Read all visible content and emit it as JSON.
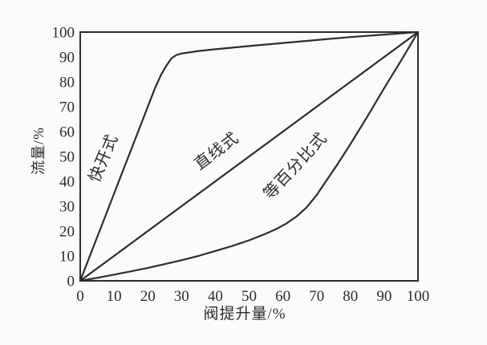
{
  "figure": {
    "background": "#fbfbfb",
    "line_color": "#2d2d2d",
    "text_color": "#2b2b2b"
  },
  "chart_data": {
    "type": "line",
    "title": "",
    "xlabel": "阀提升量/%",
    "ylabel": "流量/%",
    "xlim": [
      0,
      100
    ],
    "ylim": [
      0,
      100
    ],
    "x_ticks": [
      0,
      10,
      20,
      30,
      40,
      50,
      60,
      70,
      80,
      90,
      100
    ],
    "y_ticks": [
      0,
      10,
      20,
      30,
      40,
      50,
      60,
      70,
      80,
      90,
      100
    ],
    "grid": false,
    "frame": "full-box",
    "legend_position": "inline-rotated-labels",
    "series": [
      {
        "key": "quick-opening",
        "name": "快开式",
        "label": {
          "x": 8.3,
          "y": 48.5,
          "rotation": -67
        },
        "points": [
          [
            0,
            0
          ],
          [
            2,
            7
          ],
          [
            4,
            14
          ],
          [
            6,
            21
          ],
          [
            8,
            28
          ],
          [
            10,
            35
          ],
          [
            12,
            42
          ],
          [
            14,
            49
          ],
          [
            16,
            56
          ],
          [
            18,
            63
          ],
          [
            20,
            70
          ],
          [
            22,
            77
          ],
          [
            24,
            83
          ],
          [
            25.5,
            86.5
          ],
          [
            27,
            89.5
          ],
          [
            28.5,
            90.8
          ],
          [
            30,
            91.4
          ],
          [
            35,
            92.4
          ],
          [
            40,
            93.1
          ],
          [
            50,
            94.4
          ],
          [
            60,
            95.6
          ],
          [
            70,
            96.8
          ],
          [
            80,
            98
          ],
          [
            90,
            99
          ],
          [
            100,
            100
          ]
        ]
      },
      {
        "key": "linear",
        "name": "直线式",
        "label": {
          "x": 41.3,
          "y": 50.5,
          "rotation": -37
        },
        "points": [
          [
            0,
            0
          ],
          [
            100,
            100
          ]
        ]
      },
      {
        "key": "equal-percentage",
        "name": "等百分比式",
        "label": {
          "x": 64.8,
          "y": 44.8,
          "rotation": -47
        },
        "points": [
          [
            0,
            0
          ],
          [
            5,
            1.2
          ],
          [
            10,
            2.5
          ],
          [
            15,
            3.8
          ],
          [
            20,
            5.2
          ],
          [
            25,
            6.7
          ],
          [
            30,
            8.3
          ],
          [
            35,
            10
          ],
          [
            40,
            12
          ],
          [
            45,
            14
          ],
          [
            50,
            16.3
          ],
          [
            55,
            19
          ],
          [
            58,
            20.8
          ],
          [
            61,
            23
          ],
          [
            64,
            25.8
          ],
          [
            67,
            29.5
          ],
          [
            70,
            34.5
          ],
          [
            73,
            40.5
          ],
          [
            76,
            46.5
          ],
          [
            80,
            55
          ],
          [
            85,
            66
          ],
          [
            90,
            77.5
          ],
          [
            95,
            88.5
          ],
          [
            100,
            100
          ]
        ]
      }
    ]
  }
}
